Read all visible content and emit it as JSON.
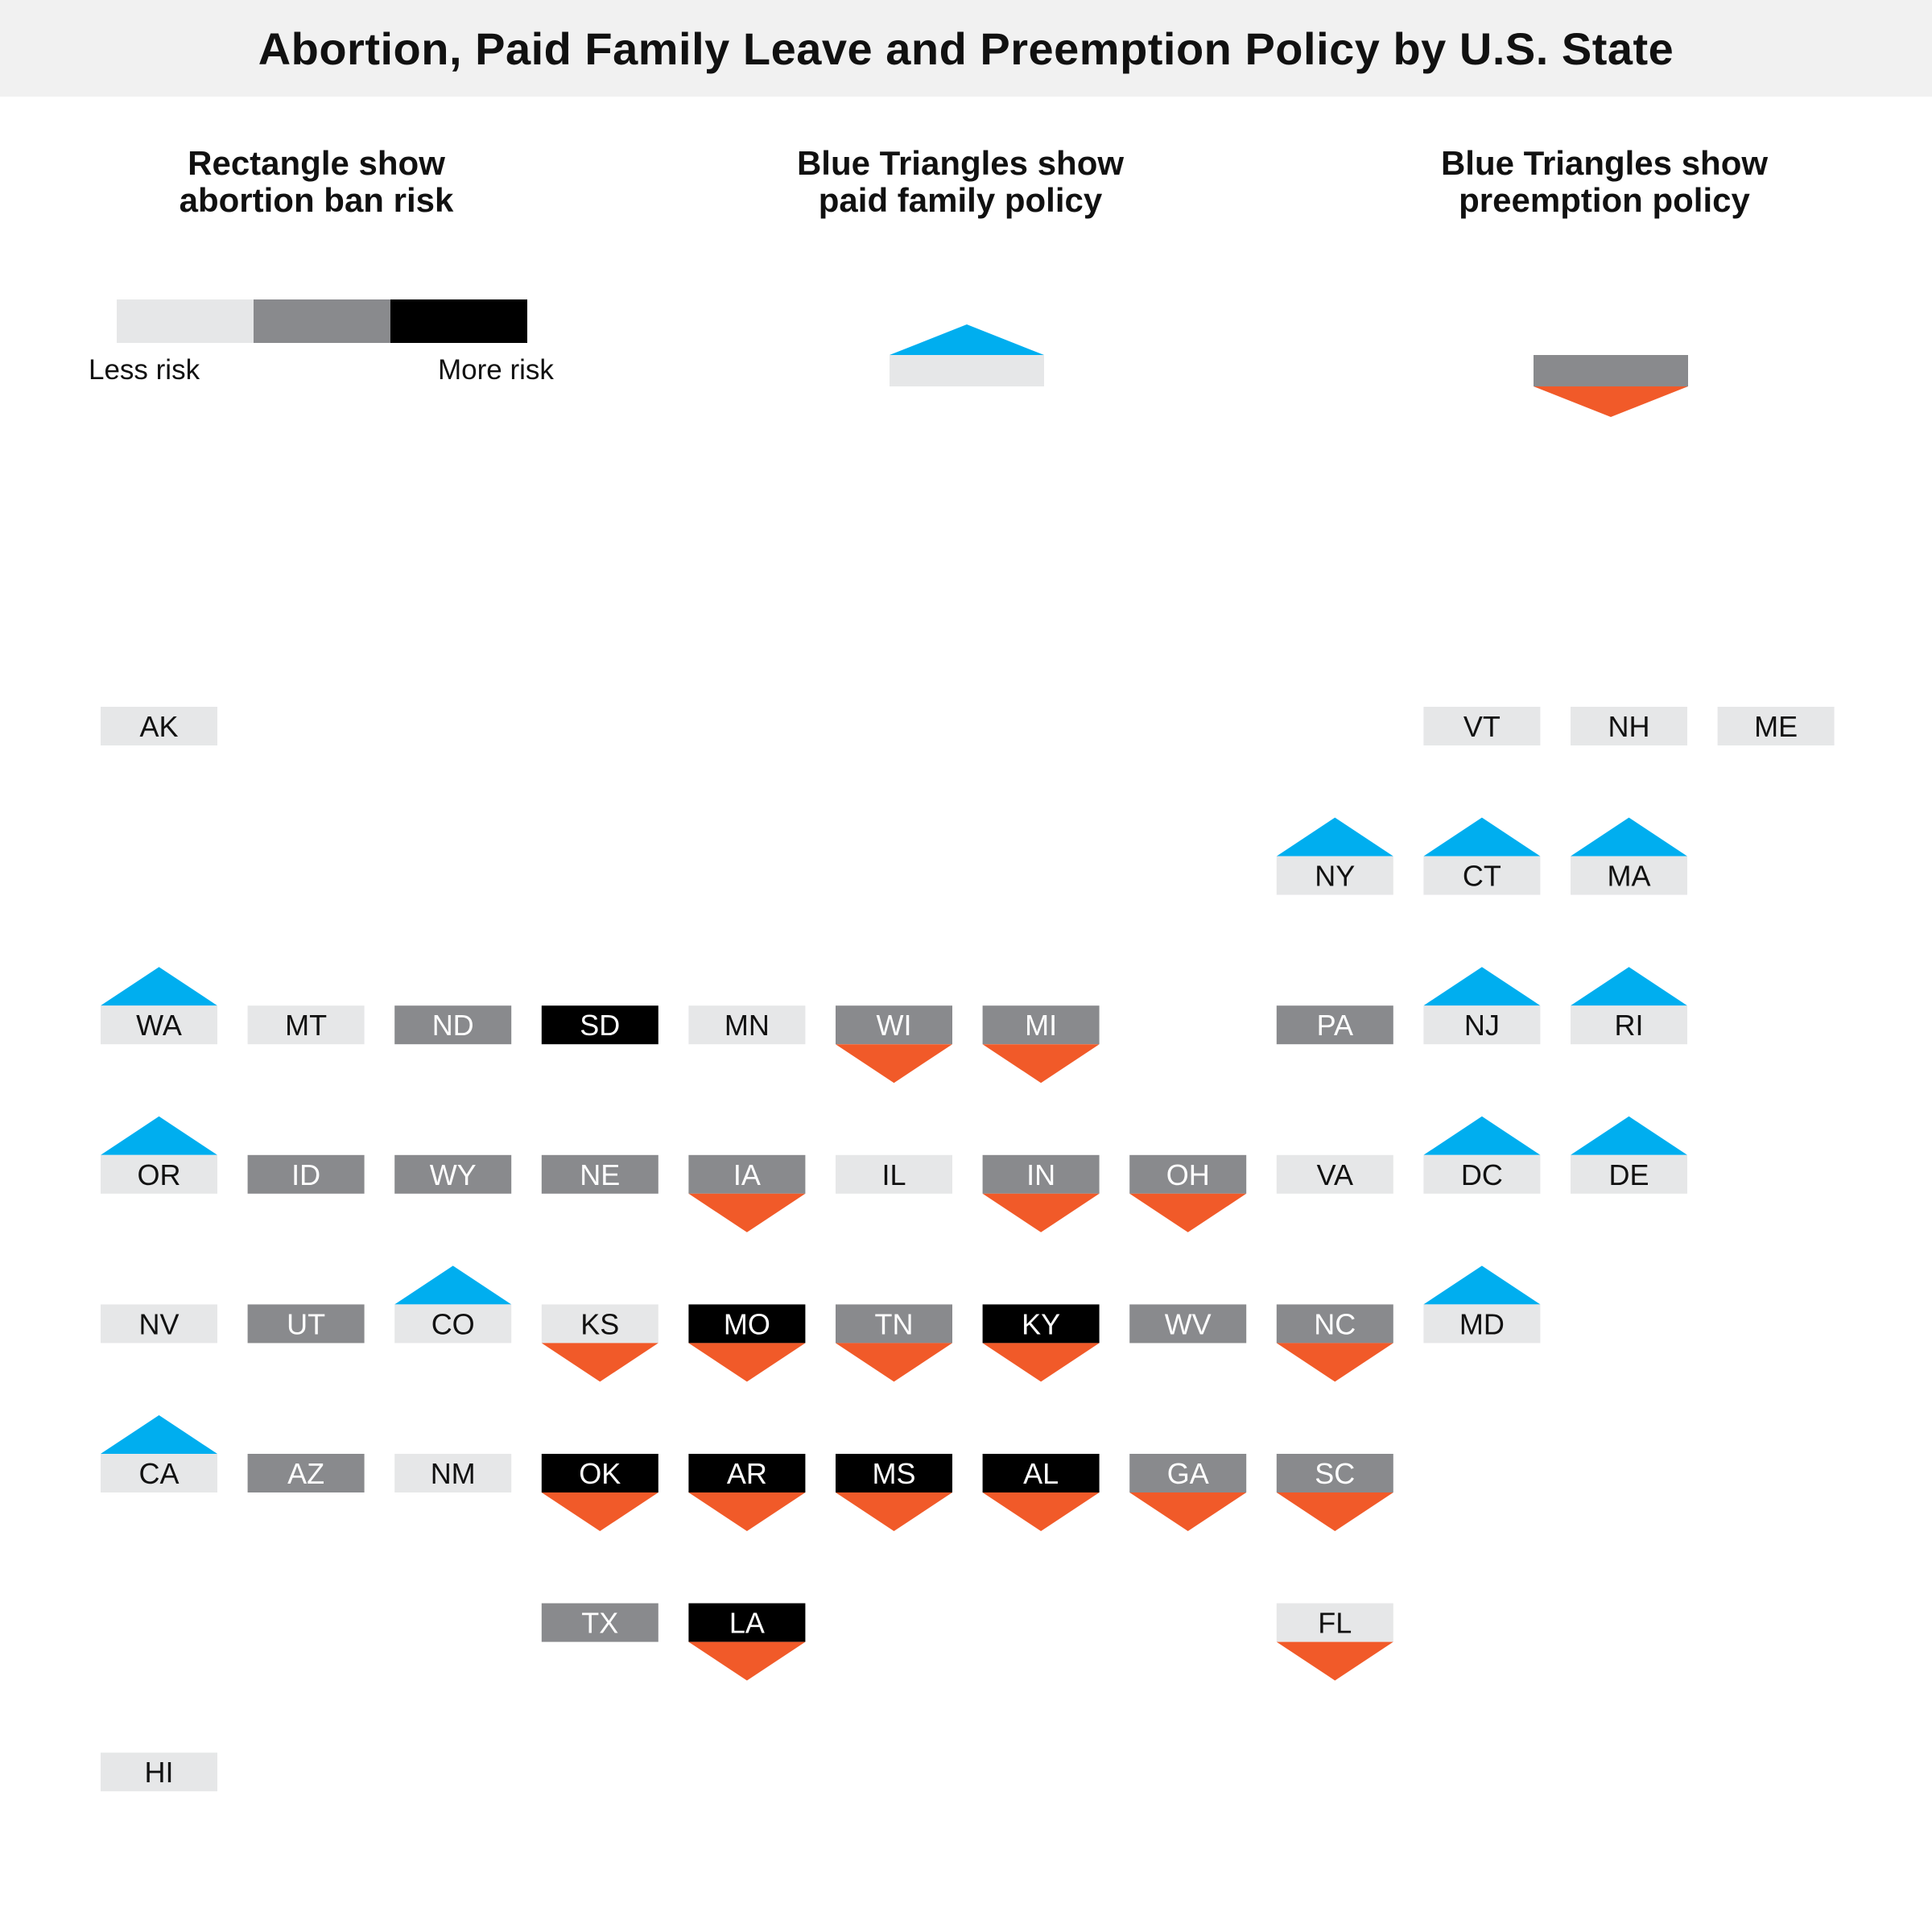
{
  "title": "Abortion, Paid Family Leave and Preemption Policy by U.S. State",
  "legend": {
    "abortion": {
      "heading_line1": "Rectangle show",
      "heading_line2": "abortion ban risk",
      "less_label": "Less risk",
      "more_label": "More risk",
      "levels": [
        "less",
        "medium",
        "more"
      ]
    },
    "paid_family": {
      "heading_line1": "Blue Triangles show",
      "heading_line2": "paid family policy"
    },
    "preemption": {
      "heading_line1": "Blue Triangles show",
      "heading_line2": "preemption policy"
    }
  },
  "colors": {
    "risk_less": "#e6e7e8",
    "risk_medium": "#898a8d",
    "risk_more": "#000000",
    "paid_family": "#00aeef",
    "preemption": "#f15a29",
    "label_dark": "#111111",
    "label_light": "#ffffff"
  },
  "states": [
    {
      "code": "AK",
      "row": 0,
      "col": 0,
      "risk": "less",
      "paid_family": false,
      "preemption": false
    },
    {
      "code": "VT",
      "row": 0,
      "col": 9,
      "risk": "less",
      "paid_family": false,
      "preemption": false
    },
    {
      "code": "NH",
      "row": 0,
      "col": 10,
      "risk": "less",
      "paid_family": false,
      "preemption": false
    },
    {
      "code": "ME",
      "row": 0,
      "col": 11,
      "risk": "less",
      "paid_family": false,
      "preemption": false
    },
    {
      "code": "NY",
      "row": 1,
      "col": 8,
      "risk": "less",
      "paid_family": true,
      "preemption": false
    },
    {
      "code": "CT",
      "row": 1,
      "col": 9,
      "risk": "less",
      "paid_family": true,
      "preemption": false
    },
    {
      "code": "MA",
      "row": 1,
      "col": 10,
      "risk": "less",
      "paid_family": true,
      "preemption": false
    },
    {
      "code": "WA",
      "row": 2,
      "col": 0,
      "risk": "less",
      "paid_family": true,
      "preemption": false
    },
    {
      "code": "MT",
      "row": 2,
      "col": 1,
      "risk": "less",
      "paid_family": false,
      "preemption": false
    },
    {
      "code": "ND",
      "row": 2,
      "col": 2,
      "risk": "medium",
      "paid_family": false,
      "preemption": false
    },
    {
      "code": "SD",
      "row": 2,
      "col": 3,
      "risk": "more",
      "paid_family": false,
      "preemption": false
    },
    {
      "code": "MN",
      "row": 2,
      "col": 4,
      "risk": "less",
      "paid_family": false,
      "preemption": false
    },
    {
      "code": "WI",
      "row": 2,
      "col": 5,
      "risk": "medium",
      "paid_family": false,
      "preemption": true
    },
    {
      "code": "MI",
      "row": 2,
      "col": 6,
      "risk": "medium",
      "paid_family": false,
      "preemption": true
    },
    {
      "code": "PA",
      "row": 2,
      "col": 8,
      "risk": "medium",
      "paid_family": false,
      "preemption": false
    },
    {
      "code": "NJ",
      "row": 2,
      "col": 9,
      "risk": "less",
      "paid_family": true,
      "preemption": false
    },
    {
      "code": "RI",
      "row": 2,
      "col": 10,
      "risk": "less",
      "paid_family": true,
      "preemption": false
    },
    {
      "code": "OR",
      "row": 3,
      "col": 0,
      "risk": "less",
      "paid_family": true,
      "preemption": false
    },
    {
      "code": "ID",
      "row": 3,
      "col": 1,
      "risk": "medium",
      "paid_family": false,
      "preemption": false
    },
    {
      "code": "WY",
      "row": 3,
      "col": 2,
      "risk": "medium",
      "paid_family": false,
      "preemption": false
    },
    {
      "code": "NE",
      "row": 3,
      "col": 3,
      "risk": "medium",
      "paid_family": false,
      "preemption": false
    },
    {
      "code": "IA",
      "row": 3,
      "col": 4,
      "risk": "medium",
      "paid_family": false,
      "preemption": true
    },
    {
      "code": "IL",
      "row": 3,
      "col": 5,
      "risk": "less",
      "paid_family": false,
      "preemption": false
    },
    {
      "code": "IN",
      "row": 3,
      "col": 6,
      "risk": "medium",
      "paid_family": false,
      "preemption": true
    },
    {
      "code": "OH",
      "row": 3,
      "col": 7,
      "risk": "medium",
      "paid_family": false,
      "preemption": true
    },
    {
      "code": "VA",
      "row": 3,
      "col": 8,
      "risk": "less",
      "paid_family": false,
      "preemption": false
    },
    {
      "code": "DC",
      "row": 3,
      "col": 9,
      "risk": "less",
      "paid_family": true,
      "preemption": false
    },
    {
      "code": "DE",
      "row": 3,
      "col": 10,
      "risk": "less",
      "paid_family": true,
      "preemption": false
    },
    {
      "code": "NV",
      "row": 4,
      "col": 0,
      "risk": "less",
      "paid_family": false,
      "preemption": false
    },
    {
      "code": "UT",
      "row": 4,
      "col": 1,
      "risk": "medium",
      "paid_family": false,
      "preemption": false
    },
    {
      "code": "CO",
      "row": 4,
      "col": 2,
      "risk": "less",
      "paid_family": true,
      "preemption": false
    },
    {
      "code": "KS",
      "row": 4,
      "col": 3,
      "risk": "less",
      "paid_family": false,
      "preemption": true
    },
    {
      "code": "MO",
      "row": 4,
      "col": 4,
      "risk": "more",
      "paid_family": false,
      "preemption": true
    },
    {
      "code": "TN",
      "row": 4,
      "col": 5,
      "risk": "medium",
      "paid_family": false,
      "preemption": true
    },
    {
      "code": "KY",
      "row": 4,
      "col": 6,
      "risk": "more",
      "paid_family": false,
      "preemption": true
    },
    {
      "code": "WV",
      "row": 4,
      "col": 7,
      "risk": "medium",
      "paid_family": false,
      "preemption": false
    },
    {
      "code": "NC",
      "row": 4,
      "col": 8,
      "risk": "medium",
      "paid_family": false,
      "preemption": true
    },
    {
      "code": "MD",
      "row": 4,
      "col": 9,
      "risk": "less",
      "paid_family": true,
      "preemption": false
    },
    {
      "code": "CA",
      "row": 5,
      "col": 0,
      "risk": "less",
      "paid_family": true,
      "preemption": false
    },
    {
      "code": "AZ",
      "row": 5,
      "col": 1,
      "risk": "medium",
      "paid_family": false,
      "preemption": false
    },
    {
      "code": "NM",
      "row": 5,
      "col": 2,
      "risk": "less",
      "paid_family": false,
      "preemption": false
    },
    {
      "code": "OK",
      "row": 5,
      "col": 3,
      "risk": "more",
      "paid_family": false,
      "preemption": true
    },
    {
      "code": "AR",
      "row": 5,
      "col": 4,
      "risk": "more",
      "paid_family": false,
      "preemption": true
    },
    {
      "code": "MS",
      "row": 5,
      "col": 5,
      "risk": "more",
      "paid_family": false,
      "preemption": true
    },
    {
      "code": "AL",
      "row": 5,
      "col": 6,
      "risk": "more",
      "paid_family": false,
      "preemption": true
    },
    {
      "code": "GA",
      "row": 5,
      "col": 7,
      "risk": "medium",
      "paid_family": false,
      "preemption": true
    },
    {
      "code": "SC",
      "row": 5,
      "col": 8,
      "risk": "medium",
      "paid_family": false,
      "preemption": true
    },
    {
      "code": "TX",
      "row": 6,
      "col": 3,
      "risk": "medium",
      "paid_family": false,
      "preemption": false
    },
    {
      "code": "LA",
      "row": 6,
      "col": 4,
      "risk": "more",
      "paid_family": false,
      "preemption": true
    },
    {
      "code": "FL",
      "row": 6,
      "col": 8,
      "risk": "less",
      "paid_family": false,
      "preemption": true
    },
    {
      "code": "HI",
      "row": 7,
      "col": 0,
      "risk": "less",
      "paid_family": false,
      "preemption": false
    }
  ]
}
